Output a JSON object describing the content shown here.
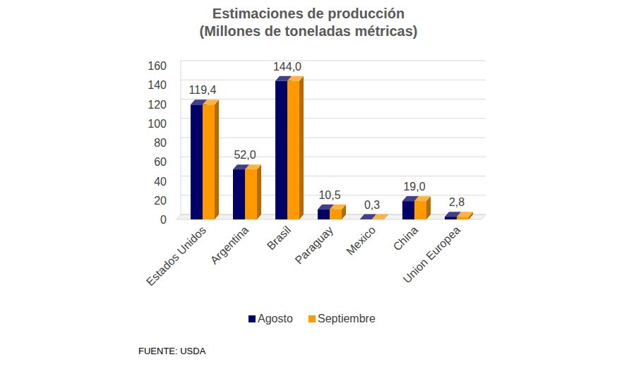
{
  "chart_data": {
    "type": "bar",
    "title": "Estimaciones de producción",
    "subtitle": "(Millones de toneladas métricas)",
    "annotations": [
      "FUENTE: USDA"
    ],
    "categories": [
      "Estados Unidos",
      "Argentina",
      "Brasil",
      "Paraguay",
      "Mexico",
      "China",
      "Union Europea"
    ],
    "series": [
      {
        "name": "Agosto",
        "color": "#000066",
        "values": [
          119.4,
          52.0,
          144.0,
          10.5,
          0.3,
          19.0,
          2.8
        ]
      },
      {
        "name": "Septiembre",
        "color": "#ff9900",
        "values": [
          119.4,
          52.0,
          144.0,
          10.5,
          0.3,
          19.0,
          2.8
        ],
        "value_labels": [
          "119,4",
          "52,0",
          "144,0",
          "10,5",
          "0,3",
          "19,0",
          "2,8"
        ]
      }
    ],
    "ylim": [
      0,
      160
    ],
    "yticks": [
      0,
      20,
      40,
      60,
      80,
      100,
      120,
      140,
      160
    ],
    "grid": true,
    "legend": "bottom",
    "data_labels": true
  }
}
